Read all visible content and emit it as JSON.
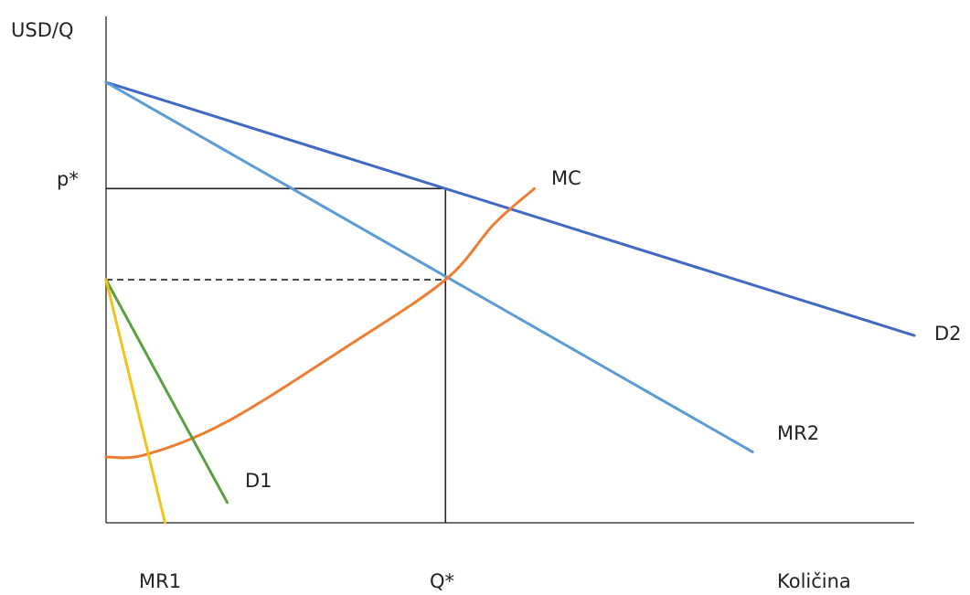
{
  "chart_data": {
    "type": "line",
    "ylabel": "USD/Q",
    "xlabel": "Količina",
    "ylim": [
      0,
      100
    ],
    "xlim": [
      0,
      100
    ],
    "grid": false,
    "series": [
      {
        "name": "D2",
        "color": "#4169c4",
        "x": [
          0,
          100
        ],
        "y": [
          87,
          37
        ]
      },
      {
        "name": "MR2",
        "color": "#5b9bd5",
        "x": [
          0,
          80
        ],
        "y": [
          87,
          14
        ]
      },
      {
        "name": "MC",
        "color": "#ed7d31",
        "x": [
          0,
          5,
          15,
          30,
          42,
          48,
          53
        ],
        "y": [
          13,
          13.5,
          20,
          35,
          48,
          59,
          66
        ]
      },
      {
        "name": "D1",
        "color": "#5aa040",
        "x": [
          0,
          15
        ],
        "y": [
          48,
          4
        ]
      },
      {
        "name": "MR1",
        "color": "#f2c318",
        "x": [
          0,
          7.3
        ],
        "y": [
          48,
          0
        ]
      }
    ],
    "reference": {
      "p_star_label": "p*",
      "q_star_label": "Q*",
      "p_star": 66,
      "q_star": 42,
      "mc_at_q_star": 48
    },
    "tick_labels": {
      "x": [
        "MR1",
        "Q*",
        "Količina"
      ],
      "y": [
        "p*"
      ]
    }
  }
}
